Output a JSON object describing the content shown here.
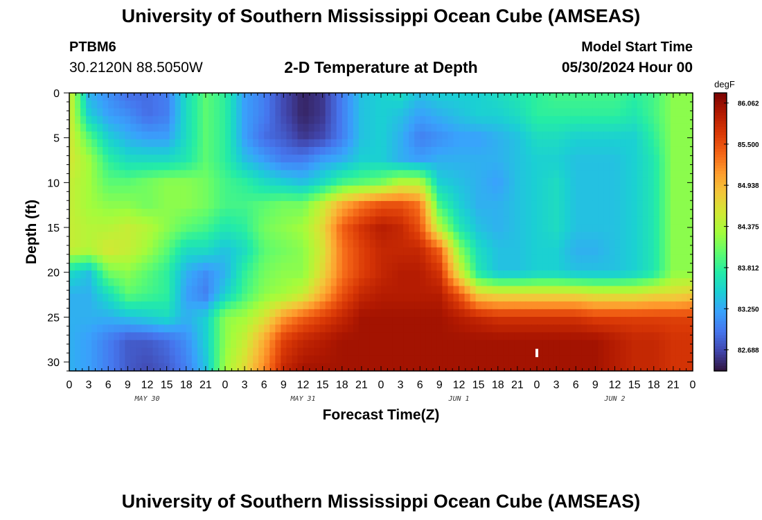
{
  "header": {
    "title": "University of Southern Mississippi Ocean Cube (AMSEAS)",
    "station_id": "PTBM6",
    "station_location": "30.2120N  88.5050W",
    "plot_title": "2-D Temperature at Depth",
    "model_start_label": "Model Start Time",
    "model_start_value": "05/30/2024 Hour 00"
  },
  "footer": {
    "title": "University of Southern Mississippi Ocean Cube (AMSEAS)"
  },
  "chart_data": {
    "type": "heatmap",
    "title": "2-D Temperature at Depth",
    "xlabel": "Forecast Time(Z)",
    "ylabel": "Depth (ft)",
    "x_tick_labels": [
      "0",
      "3",
      "6",
      "9",
      "12",
      "15",
      "18",
      "21",
      "0",
      "3",
      "6",
      "9",
      "12",
      "15",
      "18",
      "21",
      "0",
      "3",
      "6",
      "9",
      "12",
      "15",
      "18",
      "21",
      "0",
      "3",
      "6",
      "9",
      "12",
      "15",
      "18",
      "21",
      "0"
    ],
    "x_range_hours": [
      0,
      96
    ],
    "date_labels": [
      {
        "label": "MAY 30",
        "hour": 12
      },
      {
        "label": "MAY 31",
        "hour": 36
      },
      {
        "label": "JUN 1",
        "hour": 60
      },
      {
        "label": "JUN 2",
        "hour": 84
      }
    ],
    "y_ticks": [
      0,
      5,
      10,
      15,
      20,
      25,
      30
    ],
    "y_tick_labels": [
      "0",
      "5",
      "10",
      "15",
      "20",
      "25",
      "30"
    ],
    "ylim": [
      0,
      31
    ],
    "y_inverted": true,
    "colorbar": {
      "unit": "degF",
      "min": 82.4,
      "max": 86.2,
      "labels": [
        "86.062",
        "85.500",
        "84.938",
        "84.375",
        "83.812",
        "83.250",
        "82.688"
      ],
      "label_values": [
        86.062,
        85.5,
        84.938,
        84.375,
        83.812,
        83.25,
        82.688
      ],
      "colormap": [
        "#30123b",
        "#4145ab",
        "#4675ed",
        "#39a2fc",
        "#1bcfd4",
        "#24eca6",
        "#61fc6c",
        "#a4fc3b",
        "#d1e834",
        "#f3c63a",
        "#fe9b2d",
        "#f36315",
        "#d93806",
        "#b11901",
        "#7a0402"
      ]
    },
    "grid": false,
    "data_units": "degF",
    "depths_ft": [
      0,
      2.5,
      5,
      7.5,
      10,
      12.5,
      15,
      17.5,
      20,
      22.5,
      25,
      27.5,
      31
    ],
    "times_hours": [
      0,
      3,
      6,
      9,
      12,
      15,
      18,
      21,
      24,
      27,
      30,
      33,
      36,
      39,
      42,
      45,
      48,
      51,
      54,
      57,
      60,
      63,
      66,
      69,
      72,
      75,
      78,
      81,
      84,
      87,
      90,
      93,
      96
    ],
    "values": [
      [
        84.6,
        83.3,
        83.1,
        82.9,
        82.9,
        83.0,
        83.6,
        84.0,
        83.8,
        83.2,
        83.0,
        82.7,
        82.5,
        82.6,
        83.0,
        83.4,
        83.5,
        83.6,
        83.4,
        83.5,
        83.5,
        83.5,
        83.6,
        83.7,
        83.8,
        83.9,
        83.9,
        83.9,
        83.9,
        83.8,
        83.9,
        84.2,
        84.2
      ],
      [
        84.6,
        83.5,
        83.2,
        83.1,
        82.9,
        83.0,
        83.6,
        84.0,
        83.8,
        83.2,
        83.0,
        82.7,
        82.5,
        82.6,
        83.0,
        83.4,
        83.5,
        83.4,
        83.2,
        83.3,
        83.4,
        83.5,
        83.5,
        83.6,
        83.8,
        83.8,
        83.8,
        83.8,
        83.8,
        83.7,
        83.9,
        84.2,
        84.2
      ],
      [
        84.6,
        84.0,
        83.5,
        83.3,
        83.2,
        83.2,
        83.6,
        84.0,
        83.8,
        83.2,
        82.9,
        82.8,
        82.6,
        82.7,
        83.0,
        83.4,
        83.5,
        83.3,
        83.0,
        83.1,
        83.2,
        83.2,
        83.3,
        83.4,
        83.6,
        83.6,
        83.5,
        83.5,
        83.5,
        83.5,
        83.8,
        84.2,
        84.2
      ],
      [
        84.6,
        84.3,
        83.8,
        83.6,
        83.6,
        83.6,
        83.7,
        84.0,
        83.8,
        83.4,
        83.2,
        83.0,
        83.0,
        83.2,
        83.3,
        83.5,
        83.5,
        83.3,
        83.2,
        83.3,
        83.3,
        83.3,
        83.3,
        83.4,
        83.5,
        83.5,
        83.4,
        83.4,
        83.4,
        83.5,
        83.7,
        84.2,
        84.2
      ],
      [
        84.5,
        84.3,
        84.0,
        84.0,
        84.1,
        84.2,
        84.2,
        84.1,
        83.9,
        83.8,
        83.6,
        83.5,
        83.4,
        83.6,
        83.9,
        84.0,
        84.1,
        84.4,
        84.4,
        83.5,
        83.4,
        83.3,
        83.2,
        83.4,
        83.5,
        83.6,
        83.4,
        83.4,
        83.4,
        83.5,
        83.7,
        84.2,
        84.2
      ],
      [
        84.5,
        84.3,
        84.2,
        84.2,
        84.1,
        84.2,
        84.2,
        84.1,
        83.9,
        83.9,
        84.0,
        84.1,
        84.1,
        84.5,
        85.0,
        85.3,
        85.5,
        85.5,
        85.3,
        83.9,
        83.5,
        83.3,
        83.3,
        83.4,
        83.5,
        83.6,
        83.4,
        83.4,
        83.4,
        83.5,
        83.7,
        84.2,
        84.2
      ],
      [
        84.5,
        84.4,
        84.4,
        84.5,
        84.4,
        84.2,
        84.0,
        83.9,
        83.7,
        83.8,
        84.1,
        84.2,
        84.3,
        84.7,
        85.4,
        85.7,
        85.9,
        85.8,
        85.5,
        84.4,
        83.7,
        83.4,
        83.3,
        83.4,
        83.5,
        83.6,
        83.4,
        83.4,
        83.4,
        83.5,
        83.7,
        84.2,
        84.2
      ],
      [
        84.5,
        84.4,
        84.6,
        84.5,
        84.3,
        84.0,
        83.6,
        83.6,
        83.4,
        83.6,
        84.0,
        84.1,
        84.2,
        84.6,
        85.3,
        85.6,
        85.8,
        85.8,
        85.8,
        85.4,
        84.2,
        83.6,
        83.4,
        83.4,
        83.5,
        83.5,
        83.3,
        83.3,
        83.4,
        83.5,
        83.7,
        84.2,
        84.2
      ],
      [
        83.6,
        83.4,
        84.1,
        84.2,
        84.0,
        83.8,
        83.3,
        83.1,
        83.3,
        83.8,
        84.1,
        84.2,
        84.2,
        84.7,
        85.3,
        85.6,
        85.8,
        85.9,
        85.9,
        85.7,
        84.6,
        83.7,
        83.4,
        83.4,
        83.5,
        83.5,
        83.4,
        83.4,
        83.4,
        83.5,
        83.7,
        84.2,
        84.2
      ],
      [
        83.3,
        83.3,
        83.6,
        84.0,
        83.9,
        83.8,
        83.2,
        83.0,
        83.5,
        83.9,
        84.2,
        84.3,
        84.5,
        85.0,
        85.5,
        85.8,
        85.9,
        85.9,
        85.9,
        85.9,
        85.5,
        84.8,
        84.7,
        84.7,
        84.7,
        84.7,
        84.7,
        84.6,
        84.6,
        84.6,
        84.7,
        84.7,
        84.8
      ],
      [
        83.3,
        83.3,
        83.3,
        83.4,
        83.5,
        83.6,
        83.3,
        83.5,
        84.2,
        84.3,
        84.6,
        85.1,
        85.4,
        85.6,
        85.8,
        86.0,
        86.0,
        86.0,
        86.0,
        86.0,
        85.9,
        85.8,
        85.7,
        85.7,
        85.7,
        85.7,
        85.7,
        85.6,
        85.6,
        85.6,
        85.6,
        85.6,
        85.6
      ],
      [
        83.3,
        83.2,
        83.0,
        82.8,
        82.8,
        82.9,
        83.1,
        83.5,
        84.2,
        84.5,
        85.0,
        85.6,
        85.8,
        85.9,
        86.0,
        86.0,
        86.0,
        86.0,
        86.0,
        86.0,
        86.0,
        86.0,
        86.0,
        86.0,
        86.0,
        86.0,
        86.0,
        86.0,
        85.9,
        85.8,
        85.8,
        85.7,
        85.7
      ],
      [
        83.3,
        83.2,
        83.0,
        82.8,
        82.7,
        82.8,
        83.0,
        83.4,
        84.3,
        84.7,
        85.2,
        85.8,
        86.0,
        86.0,
        86.0,
        86.0,
        86.0,
        86.0,
        86.0,
        86.0,
        86.0,
        86.0,
        86.0,
        86.0,
        86.0,
        86.0,
        86.0,
        86.0,
        85.9,
        85.8,
        85.8,
        85.7,
        85.7
      ]
    ],
    "annotations": [
      {
        "text": "",
        "type": "white marker",
        "hour": 72,
        "depth_ft": 29
      }
    ]
  }
}
